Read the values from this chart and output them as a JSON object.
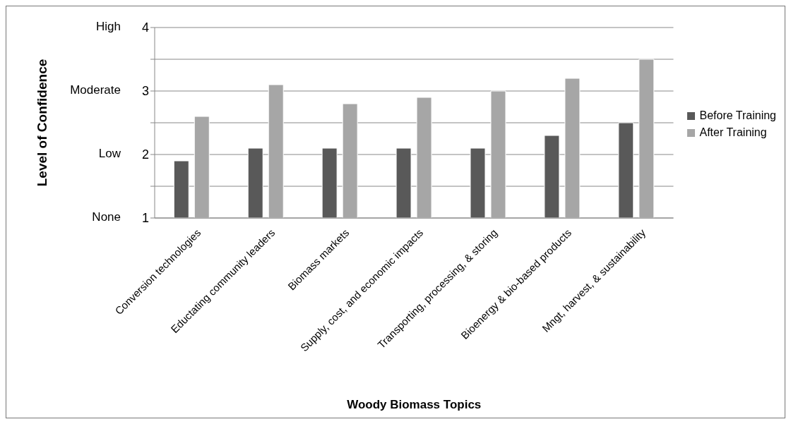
{
  "chart_data": {
    "type": "bar",
    "xlabel": "Woody Biomass Topics",
    "ylabel": "Level of  Confidence",
    "categories": [
      "Conversion technologies",
      "Eductating community leaders",
      "Biomass markets",
      "Supply, cost, and economic impacts",
      "Transporting, processing, & storing",
      "Bioenergy & bio-based products",
      "Mngt, harvest, & sustainability"
    ],
    "series": [
      {
        "name": "Before Training",
        "color": "#595959",
        "values": [
          1.9,
          2.1,
          2.1,
          2.1,
          2.1,
          2.3,
          2.5
        ]
      },
      {
        "name": "After Training",
        "color": "#a6a6a6",
        "values": [
          2.6,
          3.1,
          2.8,
          2.9,
          3.0,
          3.2,
          3.5
        ]
      }
    ],
    "ylim": [
      1,
      4
    ],
    "yticks": [
      1,
      {
        "value": 1.5,
        "label": null
      },
      2,
      {
        "value": 2.5,
        "label": null
      },
      3,
      {
        "value": 3.5,
        "label": null
      },
      4
    ],
    "annotations": [
      "None",
      "Low",
      "Moderate",
      "High"
    ],
    "grid": "y",
    "legend": "right"
  }
}
